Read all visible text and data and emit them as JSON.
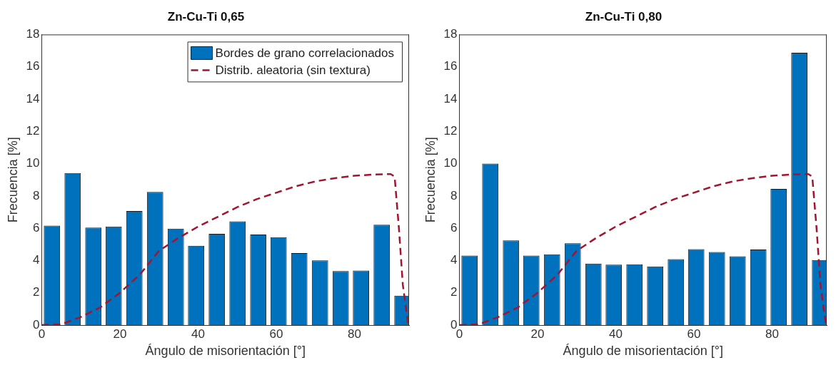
{
  "chart_data": [
    {
      "type": "bar",
      "title": "Zn-Cu-Ti 0,65",
      "xlabel": "Ángulo de misorientación [°]",
      "ylabel": "Frecuencia [%]",
      "xlim": [
        0,
        94
      ],
      "xticks": [
        0,
        20,
        40,
        60,
        80
      ],
      "ylim": [
        0,
        18
      ],
      "yticks": [
        0,
        2,
        4,
        6,
        8,
        10,
        12,
        14,
        16,
        18
      ],
      "grid": false,
      "legend": "top right",
      "series": [
        {
          "name": "Bordes de grano correlacionados",
          "color": "#0072bd",
          "x": [
            2.6,
            7.9,
            13.2,
            18.4,
            23.7,
            29.0,
            34.3,
            39.5,
            44.8,
            50.1,
            55.4,
            60.6,
            65.9,
            71.2,
            76.5,
            81.7,
            87.0,
            92.3
          ],
          "values": [
            6.16,
            9.42,
            6.04,
            6.1,
            7.07,
            8.25,
            5.97,
            4.91,
            5.65,
            6.43,
            5.61,
            5.44,
            4.46,
            4.01,
            3.35,
            3.38,
            6.22,
            1.82
          ]
        },
        {
          "name": "Distrib. aleatoria (sin textura)",
          "type": "line",
          "color": "#a2142f",
          "line_style": "dashed",
          "marker": "none",
          "x": [
            0,
            5,
            10,
            15,
            20,
            25,
            30,
            35,
            40,
            45,
            50,
            55,
            60,
            65,
            70,
            75,
            80,
            85,
            89.3,
            90.3,
            91.4,
            92.4,
            93.8
          ],
          "values": [
            0,
            0.05,
            0.5,
            1.1,
            2.0,
            3.1,
            4.6,
            5.4,
            6.1,
            6.7,
            7.3,
            7.8,
            8.2,
            8.6,
            8.9,
            9.1,
            9.25,
            9.33,
            9.35,
            9.2,
            6,
            2.5,
            0
          ]
        }
      ]
    },
    {
      "type": "bar",
      "title": "Zn-Cu-Ti 0,80",
      "xlabel": "Ángulo de misorientación [°]",
      "ylabel": "Frecuencia [%]",
      "xlim": [
        0,
        94
      ],
      "xticks": [
        0,
        20,
        40,
        60,
        80
      ],
      "ylim": [
        0,
        18
      ],
      "yticks": [
        0,
        2,
        4,
        6,
        8,
        10,
        12,
        14,
        16,
        18
      ],
      "grid": false,
      "legend": false,
      "series": [
        {
          "color": "#0072bd",
          "x": [
            2.6,
            7.9,
            13.2,
            18.4,
            23.7,
            29.0,
            34.3,
            39.5,
            44.8,
            50.1,
            55.4,
            60.6,
            65.9,
            71.2,
            76.5,
            81.7,
            87.0,
            92.3
          ],
          "values": [
            4.31,
            10.0,
            5.24,
            4.31,
            4.38,
            5.07,
            3.81,
            3.74,
            3.76,
            3.63,
            4.08,
            4.7,
            4.53,
            4.26,
            4.68,
            8.43,
            16.87,
            4.03
          ]
        },
        {
          "type": "line",
          "color": "#a2142f",
          "line_style": "dashed",
          "marker": "none",
          "x": [
            0,
            5,
            10,
            15,
            20,
            25,
            30,
            35,
            40,
            45,
            50,
            55,
            60,
            65,
            70,
            75,
            80,
            85,
            89.3,
            90.3,
            91.4,
            92.4,
            93.8
          ],
          "values": [
            0,
            0.05,
            0.5,
            1.1,
            2.0,
            3.1,
            4.6,
            5.4,
            6.1,
            6.7,
            7.3,
            7.8,
            8.2,
            8.6,
            8.9,
            9.1,
            9.25,
            9.33,
            9.35,
            9.2,
            6,
            2.5,
            0
          ]
        }
      ]
    }
  ]
}
